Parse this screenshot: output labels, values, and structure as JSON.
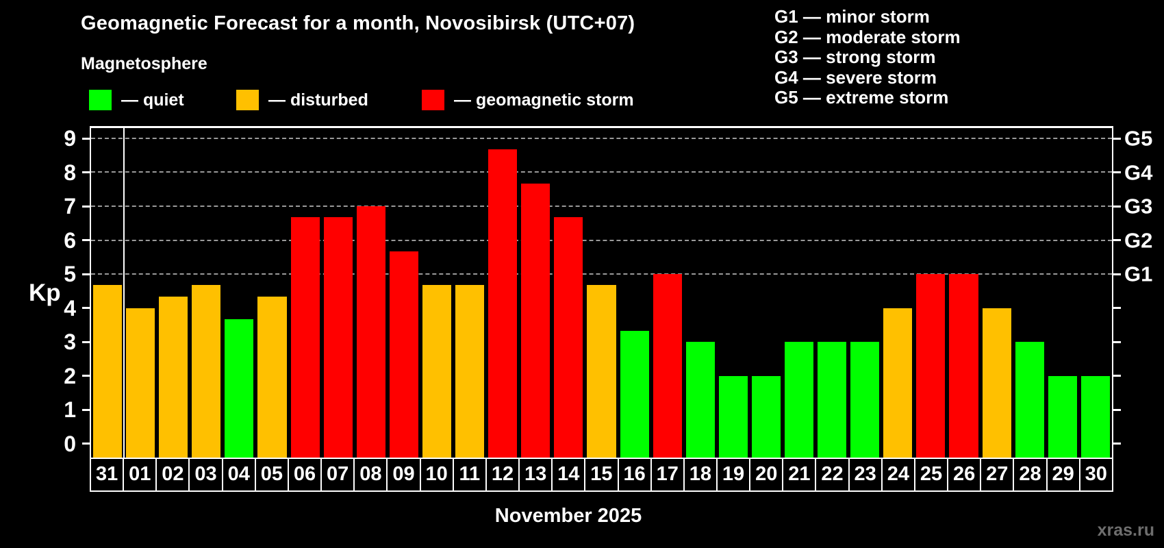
{
  "title": "Geomagnetic Forecast for a month, Novosibirsk (UTC+07)",
  "subtitle": "Magnetosphere",
  "condition_legend": [
    {
      "name": "quiet",
      "label": "— quiet",
      "color": "#00ff00"
    },
    {
      "name": "disturbed",
      "label": "— disturbed",
      "color": "#ffc000"
    },
    {
      "name": "storm",
      "label": "— geomagnetic storm",
      "color": "#ff0000"
    }
  ],
  "storm_scale_legend": [
    "G1 — minor storm",
    "G2 — moderate storm",
    "G3 — strong storm",
    "G4 — severe storm",
    "G5 — extreme storm"
  ],
  "chart_data": {
    "type": "bar",
    "title": "Geomagnetic Forecast for a month, Novosibirsk (UTC+07)",
    "ylabel": "Kp",
    "xlabel": "November 2025",
    "ylim": [
      0,
      9
    ],
    "grid": "dashed horizontal at G levels",
    "gridlines_at": [
      5,
      6,
      7,
      8,
      9
    ],
    "yticks_left": [
      0,
      1,
      2,
      3,
      4,
      5,
      6,
      7,
      8,
      9
    ],
    "yticks_right": [
      {
        "value": 5,
        "label": "G1"
      },
      {
        "value": 6,
        "label": "G2"
      },
      {
        "value": 7,
        "label": "G3"
      },
      {
        "value": 8,
        "label": "G4"
      },
      {
        "value": 9,
        "label": "G5"
      }
    ],
    "month_separator_after_index": 0,
    "categories": [
      "31",
      "01",
      "02",
      "03",
      "04",
      "05",
      "06",
      "07",
      "08",
      "09",
      "10",
      "11",
      "12",
      "13",
      "14",
      "15",
      "16",
      "17",
      "18",
      "19",
      "20",
      "21",
      "22",
      "23",
      "24",
      "25",
      "26",
      "27",
      "28",
      "29",
      "30"
    ],
    "values": [
      4.67,
      4.0,
      4.33,
      4.67,
      3.67,
      4.33,
      6.67,
      6.67,
      7.0,
      5.67,
      4.67,
      4.67,
      8.67,
      7.67,
      6.67,
      4.67,
      3.33,
      5.0,
      3.0,
      2.0,
      2.0,
      3.0,
      3.0,
      3.0,
      4.0,
      5.0,
      5.0,
      4.0,
      3.0,
      2.0,
      2.0
    ],
    "statuses": [
      "disturbed",
      "disturbed",
      "disturbed",
      "disturbed",
      "quiet",
      "disturbed",
      "storm",
      "storm",
      "storm",
      "storm",
      "disturbed",
      "disturbed",
      "storm",
      "storm",
      "storm",
      "disturbed",
      "quiet",
      "storm",
      "quiet",
      "quiet",
      "quiet",
      "quiet",
      "quiet",
      "quiet",
      "disturbed",
      "storm",
      "storm",
      "disturbed",
      "quiet",
      "quiet",
      "quiet"
    ]
  },
  "footer": {
    "watermark": "xras.ru"
  },
  "colors": {
    "quiet": "#00ff00",
    "disturbed": "#ffc000",
    "storm": "#ff0000",
    "background": "#000000",
    "grid": "#9a9a9a",
    "axis": "#ffffff",
    "watermark": "#6e6e6e"
  }
}
